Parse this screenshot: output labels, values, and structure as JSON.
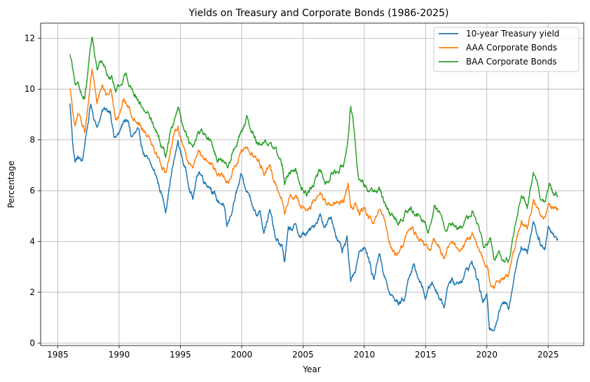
{
  "chart_data": {
    "type": "line",
    "title": "Yields on Treasury and Corporate Bonds (1986-2025)",
    "xlabel": "Year",
    "ylabel": "Percentage",
    "xlim": [
      1983.6,
      2027.9
    ],
    "ylim": [
      -0.1,
      12.6
    ],
    "xticks": [
      1985,
      1990,
      1995,
      2000,
      2005,
      2010,
      2015,
      2020,
      2025
    ],
    "yticks": [
      0,
      2,
      4,
      6,
      8,
      10,
      12
    ],
    "grid": true,
    "legend_position": "upper right",
    "series": [
      {
        "name": "10-year Treasury yield",
        "color": "#1f77b4",
        "points": [
          [
            1986.0,
            9.4
          ],
          [
            1986.2,
            8.0
          ],
          [
            1986.4,
            7.2
          ],
          [
            1986.7,
            7.3
          ],
          [
            1987.0,
            7.1
          ],
          [
            1987.3,
            8.2
          ],
          [
            1987.7,
            9.4
          ],
          [
            1987.9,
            8.9
          ],
          [
            1988.3,
            8.6
          ],
          [
            1988.6,
            9.2
          ],
          [
            1989.0,
            9.1
          ],
          [
            1989.3,
            9.2
          ],
          [
            1989.6,
            8.1
          ],
          [
            1990.0,
            8.2
          ],
          [
            1990.4,
            8.8
          ],
          [
            1990.8,
            8.6
          ],
          [
            1991.0,
            8.1
          ],
          [
            1991.5,
            8.3
          ],
          [
            1992.0,
            7.5
          ],
          [
            1992.5,
            7.0
          ],
          [
            1993.0,
            6.6
          ],
          [
            1993.5,
            5.8
          ],
          [
            1993.8,
            5.3
          ],
          [
            1994.2,
            6.5
          ],
          [
            1994.8,
            7.9
          ],
          [
            1995.2,
            7.2
          ],
          [
            1995.7,
            6.3
          ],
          [
            1996.0,
            5.7
          ],
          [
            1996.5,
            6.8
          ],
          [
            1997.0,
            6.4
          ],
          [
            1997.5,
            6.2
          ],
          [
            1998.0,
            5.6
          ],
          [
            1998.5,
            5.5
          ],
          [
            1998.8,
            4.5
          ],
          [
            1999.0,
            4.8
          ],
          [
            1999.5,
            5.8
          ],
          [
            2000.0,
            6.5
          ],
          [
            2000.3,
            6.0
          ],
          [
            2000.8,
            5.7
          ],
          [
            2001.2,
            5.0
          ],
          [
            2001.5,
            5.3
          ],
          [
            2001.8,
            4.5
          ],
          [
            2002.3,
            5.2
          ],
          [
            2002.8,
            4.0
          ],
          [
            2003.3,
            3.8
          ],
          [
            2003.5,
            3.2
          ],
          [
            2003.8,
            4.4
          ],
          [
            2004.3,
            4.6
          ],
          [
            2004.8,
            4.2
          ],
          [
            2005.3,
            4.3
          ],
          [
            2005.8,
            4.5
          ],
          [
            2006.4,
            5.1
          ],
          [
            2006.8,
            4.6
          ],
          [
            2007.3,
            4.9
          ],
          [
            2007.8,
            4.2
          ],
          [
            2008.2,
            3.5
          ],
          [
            2008.6,
            4.0
          ],
          [
            2008.9,
            2.3
          ],
          [
            2009.3,
            3.0
          ],
          [
            2009.6,
            3.7
          ],
          [
            2010.0,
            3.8
          ],
          [
            2010.4,
            3.2
          ],
          [
            2010.8,
            2.5
          ],
          [
            2011.2,
            3.6
          ],
          [
            2011.6,
            2.8
          ],
          [
            2012.0,
            2.0
          ],
          [
            2012.4,
            1.7
          ],
          [
            2012.8,
            1.6
          ],
          [
            2013.3,
            1.8
          ],
          [
            2013.7,
            2.8
          ],
          [
            2014.0,
            3.0
          ],
          [
            2014.5,
            2.5
          ],
          [
            2015.0,
            1.8
          ],
          [
            2015.5,
            2.4
          ],
          [
            2016.0,
            2.0
          ],
          [
            2016.5,
            1.5
          ],
          [
            2016.9,
            2.5
          ],
          [
            2017.5,
            2.3
          ],
          [
            2018.0,
            2.6
          ],
          [
            2018.8,
            3.2
          ],
          [
            2019.3,
            2.4
          ],
          [
            2019.7,
            1.6
          ],
          [
            2020.0,
            1.8
          ],
          [
            2020.2,
            0.6
          ],
          [
            2020.6,
            0.7
          ],
          [
            2021.2,
            1.5
          ],
          [
            2021.8,
            1.5
          ],
          [
            2022.3,
            2.9
          ],
          [
            2022.8,
            3.9
          ],
          [
            2023.3,
            3.5
          ],
          [
            2023.8,
            4.9
          ],
          [
            2024.2,
            4.2
          ],
          [
            2024.7,
            3.7
          ],
          [
            2025.0,
            4.6
          ],
          [
            2025.5,
            4.3
          ],
          [
            2025.8,
            4.1
          ]
        ]
      },
      {
        "name": "AAA Corporate Bonds",
        "color": "#ff7f0e",
        "points": [
          [
            1986.0,
            10.1
          ],
          [
            1986.2,
            9.3
          ],
          [
            1986.4,
            8.7
          ],
          [
            1986.8,
            9.0
          ],
          [
            1987.2,
            8.4
          ],
          [
            1987.5,
            9.6
          ],
          [
            1987.8,
            10.9
          ],
          [
            1988.2,
            9.5
          ],
          [
            1988.6,
            10.1
          ],
          [
            1989.0,
            9.8
          ],
          [
            1989.3,
            9.9
          ],
          [
            1989.7,
            8.9
          ],
          [
            1990.0,
            9.1
          ],
          [
            1990.4,
            9.6
          ],
          [
            1990.8,
            9.3
          ],
          [
            1991.2,
            8.9
          ],
          [
            1991.7,
            8.7
          ],
          [
            1992.0,
            8.4
          ],
          [
            1992.5,
            8.2
          ],
          [
            1993.0,
            7.6
          ],
          [
            1993.5,
            7.0
          ],
          [
            1993.8,
            6.7
          ],
          [
            1994.2,
            7.7
          ],
          [
            1994.8,
            8.6
          ],
          [
            1995.2,
            7.8
          ],
          [
            1995.7,
            7.2
          ],
          [
            1996.0,
            6.9
          ],
          [
            1996.5,
            7.6
          ],
          [
            1997.0,
            7.3
          ],
          [
            1997.5,
            7.1
          ],
          [
            1998.0,
            6.6
          ],
          [
            1998.5,
            6.5
          ],
          [
            1998.9,
            6.3
          ],
          [
            1999.3,
            6.9
          ],
          [
            1999.8,
            7.4
          ],
          [
            2000.3,
            7.8
          ],
          [
            2000.8,
            7.5
          ],
          [
            2001.3,
            7.2
          ],
          [
            2001.8,
            6.8
          ],
          [
            2002.3,
            6.9
          ],
          [
            2002.8,
            6.3
          ],
          [
            2003.3,
            5.8
          ],
          [
            2003.5,
            5.0
          ],
          [
            2003.9,
            5.8
          ],
          [
            2004.4,
            5.9
          ],
          [
            2004.8,
            5.4
          ],
          [
            2005.3,
            5.2
          ],
          [
            2005.8,
            5.5
          ],
          [
            2006.4,
            6.0
          ],
          [
            2006.9,
            5.4
          ],
          [
            2007.3,
            5.6
          ],
          [
            2007.9,
            5.4
          ],
          [
            2008.3,
            5.5
          ],
          [
            2008.7,
            6.2
          ],
          [
            2008.9,
            5.2
          ],
          [
            2009.3,
            5.5
          ],
          [
            2009.6,
            5.1
          ],
          [
            2010.0,
            5.3
          ],
          [
            2010.4,
            4.9
          ],
          [
            2010.8,
            4.6
          ],
          [
            2011.2,
            5.2
          ],
          [
            2011.7,
            4.6
          ],
          [
            2012.0,
            3.9
          ],
          [
            2012.5,
            3.5
          ],
          [
            2012.9,
            3.5
          ],
          [
            2013.4,
            4.2
          ],
          [
            2013.8,
            4.6
          ],
          [
            2014.3,
            4.3
          ],
          [
            2014.8,
            3.9
          ],
          [
            2015.2,
            3.5
          ],
          [
            2015.7,
            4.1
          ],
          [
            2016.2,
            3.7
          ],
          [
            2016.6,
            3.4
          ],
          [
            2017.0,
            3.9
          ],
          [
            2017.6,
            3.7
          ],
          [
            2018.1,
            3.8
          ],
          [
            2018.8,
            4.2
          ],
          [
            2019.3,
            3.7
          ],
          [
            2019.7,
            3.2
          ],
          [
            2020.0,
            3.1
          ],
          [
            2020.3,
            2.3
          ],
          [
            2020.6,
            2.1
          ],
          [
            2021.2,
            2.5
          ],
          [
            2021.8,
            2.8
          ],
          [
            2022.3,
            3.8
          ],
          [
            2022.8,
            4.8
          ],
          [
            2023.3,
            4.5
          ],
          [
            2023.8,
            5.6
          ],
          [
            2024.3,
            5.2
          ],
          [
            2024.7,
            4.8
          ],
          [
            2025.1,
            5.5
          ],
          [
            2025.5,
            5.3
          ],
          [
            2025.8,
            5.2
          ]
        ]
      },
      {
        "name": "BAA Corporate Bonds",
        "color": "#2ca02c",
        "points": [
          [
            1986.0,
            11.4
          ],
          [
            1986.2,
            10.9
          ],
          [
            1986.4,
            10.1
          ],
          [
            1986.8,
            10.0
          ],
          [
            1987.2,
            9.6
          ],
          [
            1987.5,
            10.8
          ],
          [
            1987.8,
            12.0
          ],
          [
            1988.2,
            10.8
          ],
          [
            1988.6,
            11.2
          ],
          [
            1989.0,
            10.6
          ],
          [
            1989.4,
            10.5
          ],
          [
            1989.7,
            9.9
          ],
          [
            1990.0,
            10.1
          ],
          [
            1990.5,
            10.6
          ],
          [
            1990.8,
            10.4
          ],
          [
            1991.2,
            9.9
          ],
          [
            1991.7,
            9.5
          ],
          [
            1992.0,
            9.2
          ],
          [
            1992.5,
            9.0
          ],
          [
            1993.0,
            8.4
          ],
          [
            1993.5,
            7.8
          ],
          [
            1993.8,
            7.4
          ],
          [
            1994.2,
            8.3
          ],
          [
            1994.8,
            9.2
          ],
          [
            1995.2,
            8.5
          ],
          [
            1995.7,
            7.9
          ],
          [
            1996.0,
            7.6
          ],
          [
            1996.5,
            8.3
          ],
          [
            1997.0,
            8.1
          ],
          [
            1997.5,
            7.8
          ],
          [
            1998.0,
            7.3
          ],
          [
            1998.5,
            7.2
          ],
          [
            1998.9,
            7.1
          ],
          [
            1999.3,
            7.6
          ],
          [
            1999.8,
            8.2
          ],
          [
            2000.3,
            8.7
          ],
          [
            2000.4,
            9.0
          ],
          [
            2000.8,
            8.2
          ],
          [
            2001.3,
            7.9
          ],
          [
            2001.8,
            8.0
          ],
          [
            2002.3,
            7.8
          ],
          [
            2002.8,
            7.6
          ],
          [
            2003.3,
            7.0
          ],
          [
            2003.5,
            6.2
          ],
          [
            2003.9,
            6.7
          ],
          [
            2004.4,
            6.8
          ],
          [
            2004.8,
            6.2
          ],
          [
            2005.3,
            5.9
          ],
          [
            2005.8,
            6.2
          ],
          [
            2006.4,
            6.8
          ],
          [
            2006.9,
            6.3
          ],
          [
            2007.3,
            6.7
          ],
          [
            2007.9,
            6.7
          ],
          [
            2008.3,
            7.1
          ],
          [
            2008.7,
            8.2
          ],
          [
            2008.9,
            9.4
          ],
          [
            2009.2,
            8.3
          ],
          [
            2009.5,
            6.6
          ],
          [
            2010.0,
            6.3
          ],
          [
            2010.4,
            6.0
          ],
          [
            2010.8,
            5.8
          ],
          [
            2011.2,
            6.1
          ],
          [
            2011.7,
            5.4
          ],
          [
            2012.0,
            5.1
          ],
          [
            2012.5,
            4.8
          ],
          [
            2012.9,
            4.7
          ],
          [
            2013.4,
            5.2
          ],
          [
            2013.8,
            5.3
          ],
          [
            2014.3,
            5.0
          ],
          [
            2014.8,
            4.7
          ],
          [
            2015.2,
            4.5
          ],
          [
            2015.7,
            5.4
          ],
          [
            2016.2,
            5.0
          ],
          [
            2016.6,
            4.4
          ],
          [
            2017.0,
            4.6
          ],
          [
            2017.6,
            4.4
          ],
          [
            2018.1,
            4.5
          ],
          [
            2018.8,
            5.2
          ],
          [
            2019.3,
            4.6
          ],
          [
            2019.7,
            3.8
          ],
          [
            2020.0,
            3.9
          ],
          [
            2020.3,
            4.3
          ],
          [
            2020.6,
            3.3
          ],
          [
            2021.2,
            3.4
          ],
          [
            2021.8,
            3.3
          ],
          [
            2022.3,
            4.6
          ],
          [
            2022.8,
            5.8
          ],
          [
            2023.3,
            5.4
          ],
          [
            2023.8,
            6.6
          ],
          [
            2024.3,
            5.8
          ],
          [
            2024.7,
            5.5
          ],
          [
            2025.1,
            6.3
          ],
          [
            2025.5,
            5.9
          ],
          [
            2025.8,
            5.8
          ]
        ]
      }
    ]
  }
}
